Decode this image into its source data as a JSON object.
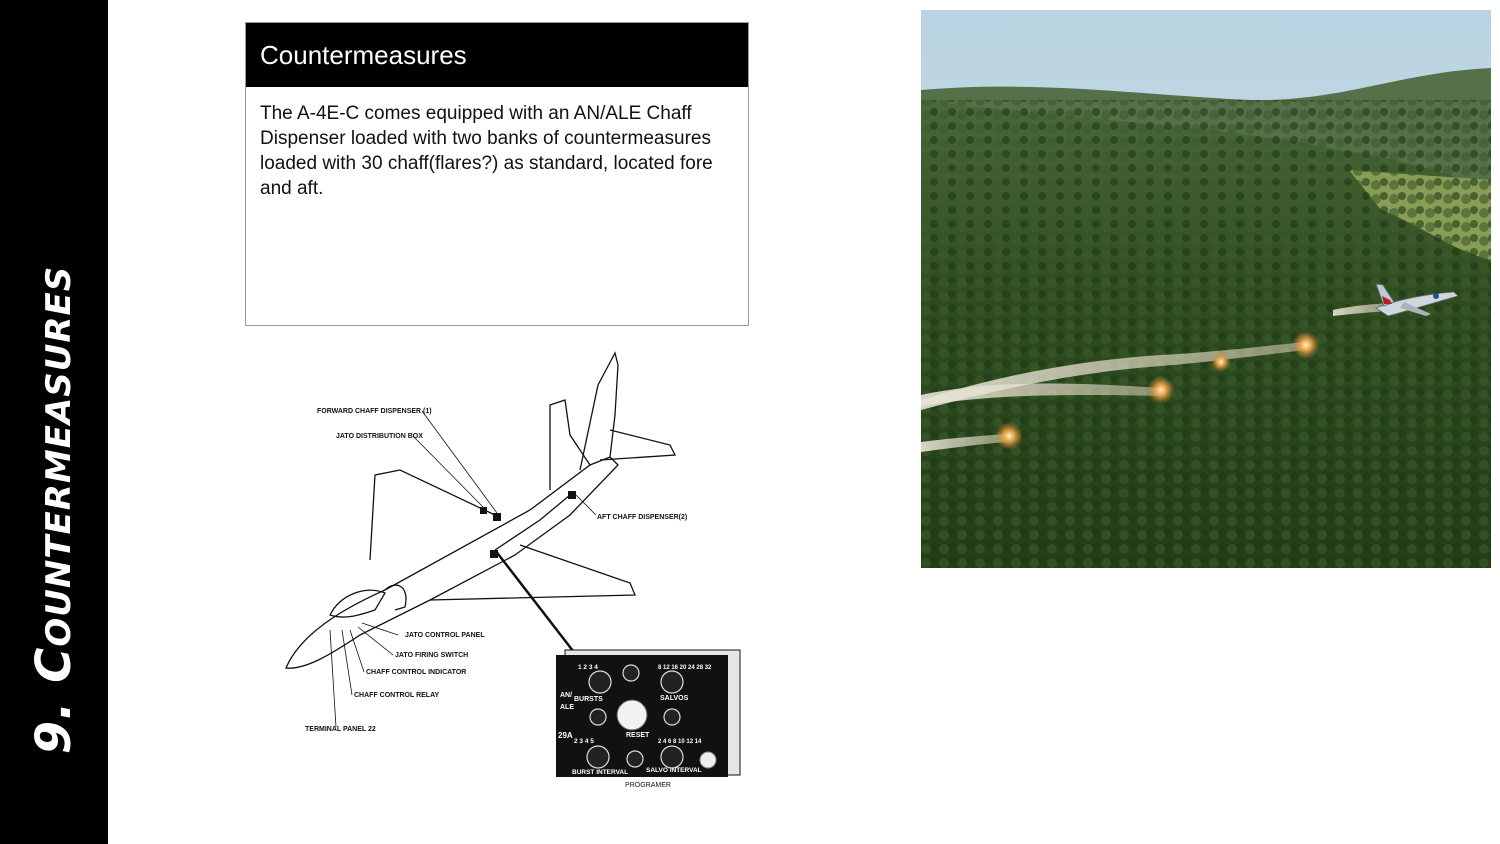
{
  "sidebar": {
    "title": "9. Countermeasures"
  },
  "panel": {
    "heading": "Countermeasures",
    "body": "The A-4E-C comes equipped with an AN/ALE Chaff Dispenser loaded with two banks of countermeasures loaded with 30 chaff(flares?) as standard, located fore and aft."
  },
  "diagram": {
    "callouts": {
      "forward_chaff": "FORWARD CHAFF DISPENSER (1)",
      "jato_box": "JATO DISTRIBUTION BOX",
      "aft_chaff": "AFT CHAFF DISPENSER(2)",
      "jato_panel": "JATO CONTROL PANEL",
      "jato_switch": "JATO FIRING SWITCH",
      "chaff_indicator": "CHAFF CONTROL INDICATOR",
      "chaff_relay": "CHAFF CONTROL RELAY",
      "terminal": "TERMINAL PANEL 22"
    },
    "programmer": {
      "caption": "PROGRAMER",
      "model_line1": "AN/",
      "model_line2": "ALE",
      "model_line3": "29A",
      "bursts": "BURSTS",
      "salvos": "SALVOS",
      "reset": "RESET",
      "burst_interval": "BURST INTERVAL",
      "salvo_interval": "SALVO INTERVAL",
      "burst_scale": "1 2 3 4",
      "salvo_scale": "8 12 16 20 24 28 32",
      "bi_scale": "2 3 4 5",
      "si_scale": "2 4 6 8 10 12 14"
    }
  },
  "colors": {
    "sidebar": "#000000",
    "header": "#000000",
    "forest": "#2c4a1c",
    "sky": "#c9dce6"
  }
}
